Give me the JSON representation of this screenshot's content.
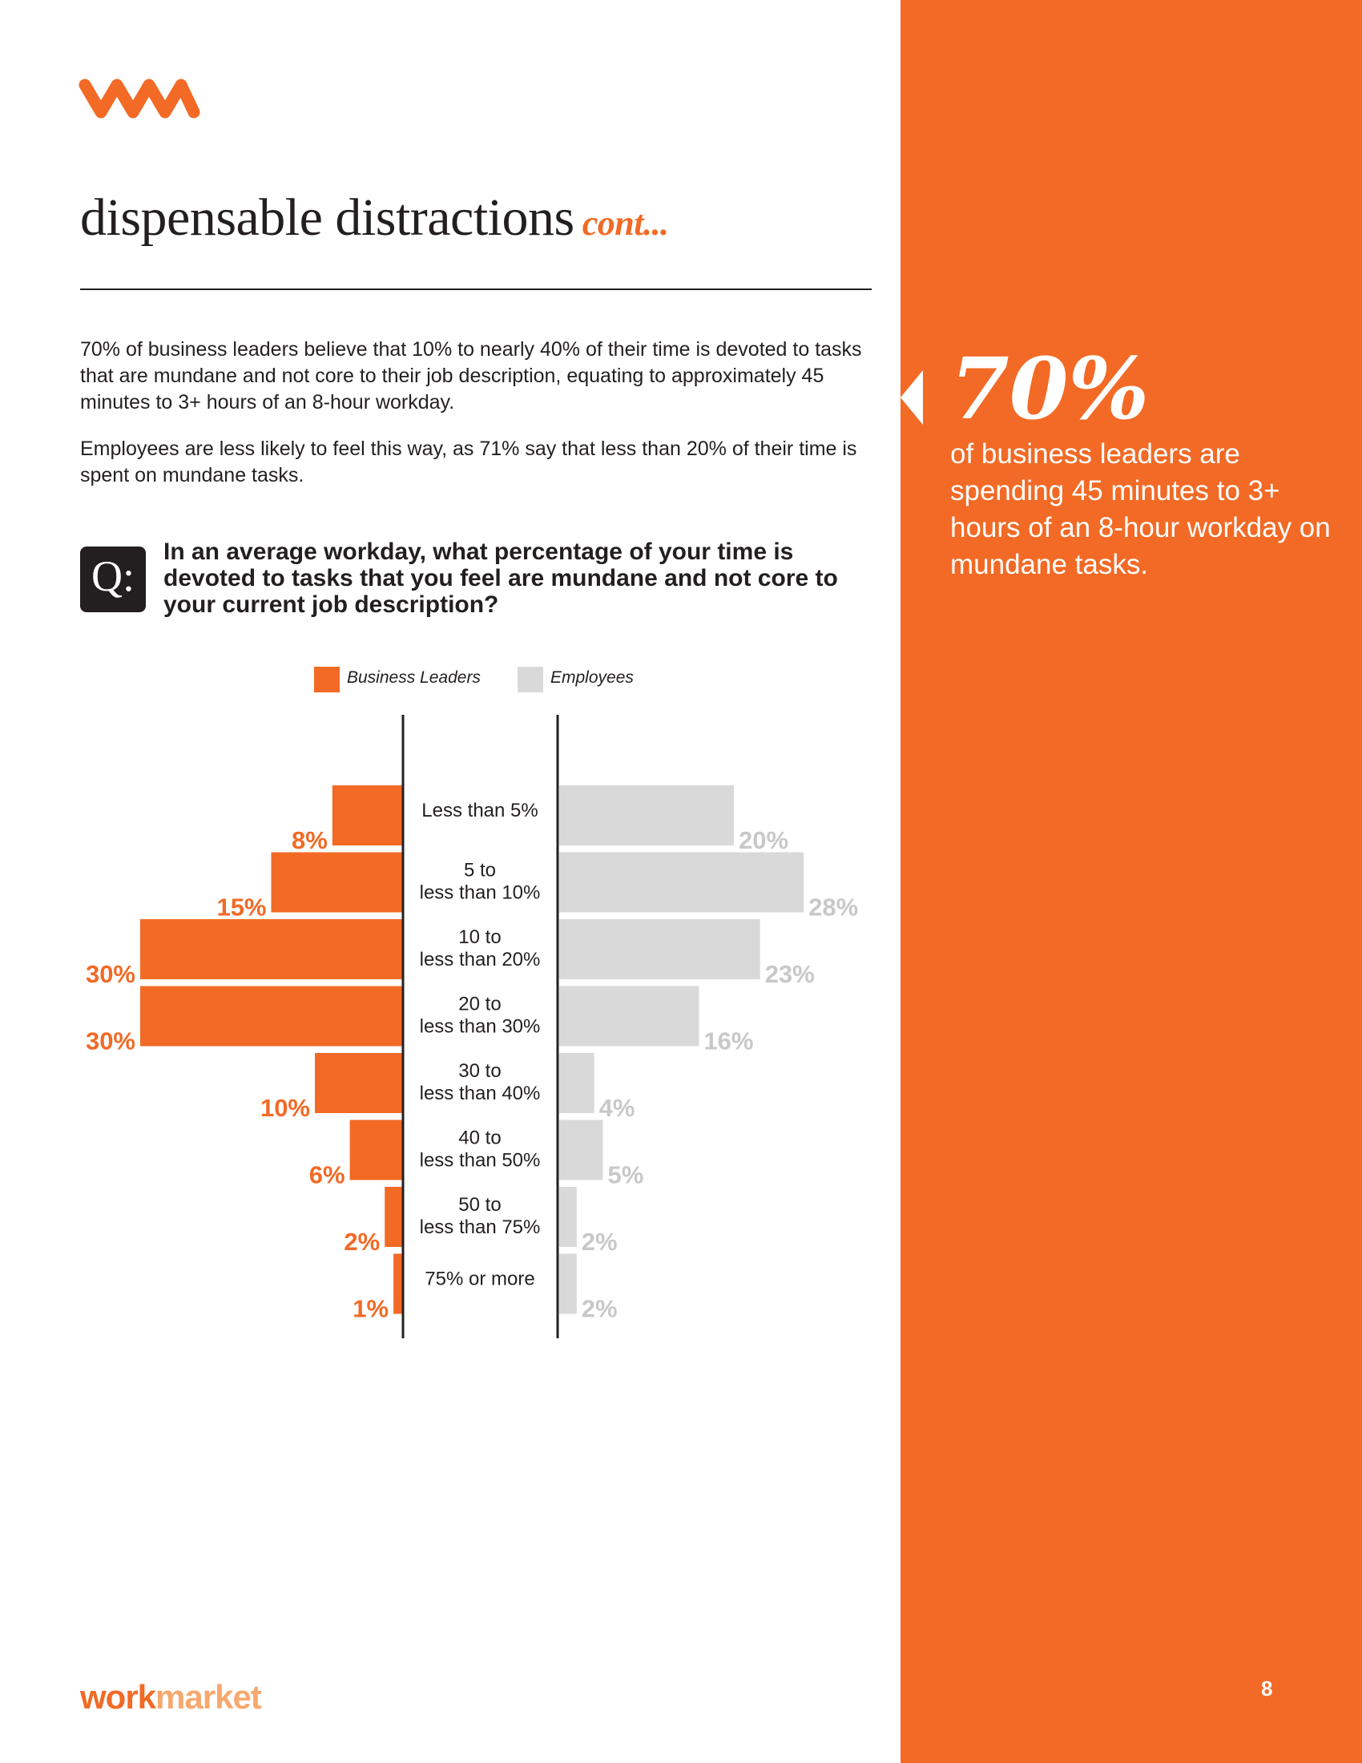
{
  "header": {
    "title": "dispensable distractions",
    "title_suffix": "cont..."
  },
  "body": {
    "paragraph1": "70% of business leaders believe that 10% to nearly 40% of their time is devoted to tasks that are mundane and not core to their job description, equating to approximately 45 minutes to 3+ hours of an 8-hour workday.",
    "paragraph2": "Employees are less likely to feel this way, as 71% say that less than 20% of their time is spent on mundane tasks."
  },
  "question": {
    "badge": "Q:",
    "text": "In an average workday, what percentage of your time is devoted to tasks that you feel are mundane and not core to your current job description?"
  },
  "callout": {
    "stat": "70%",
    "text": "of business leaders are spending 45 minutes to 3+ hours of an 8-hour workday on mundane tasks."
  },
  "footer": {
    "brand_part1": "work",
    "brand_part2": "market",
    "page_number": "8"
  },
  "colors": {
    "accent": "#f26a25",
    "employees": "#d9d9d9",
    "employees_label": "#c8c8c8",
    "text": "#231f20"
  },
  "chart_data": {
    "type": "bar",
    "orientation": "horizontal-diverging",
    "categories": [
      [
        "Less than 5%"
      ],
      [
        "5 to",
        "less than 10%"
      ],
      [
        "10 to",
        "less than 20%"
      ],
      [
        "20 to",
        "less than 30%"
      ],
      [
        "30 to",
        "less than 40%"
      ],
      [
        "40 to",
        "less than 50%"
      ],
      [
        "50 to",
        "less than 75%"
      ],
      [
        "75% or more"
      ]
    ],
    "series": [
      {
        "name": "Business Leaders",
        "values": [
          8,
          15,
          30,
          30,
          10,
          6,
          2,
          1
        ],
        "labels": [
          "8%",
          "15%",
          "30%",
          "30%",
          "10%",
          "6%",
          "2%",
          "1%"
        ],
        "direction": "left"
      },
      {
        "name": "Employees",
        "values": [
          20,
          28,
          23,
          16,
          4,
          5,
          2,
          2
        ],
        "labels": [
          "20%",
          "28%",
          "23%",
          "16%",
          "4%",
          "5%",
          "2%",
          "2%"
        ],
        "direction": "right"
      }
    ],
    "legend": "top-center",
    "grid": false
  }
}
